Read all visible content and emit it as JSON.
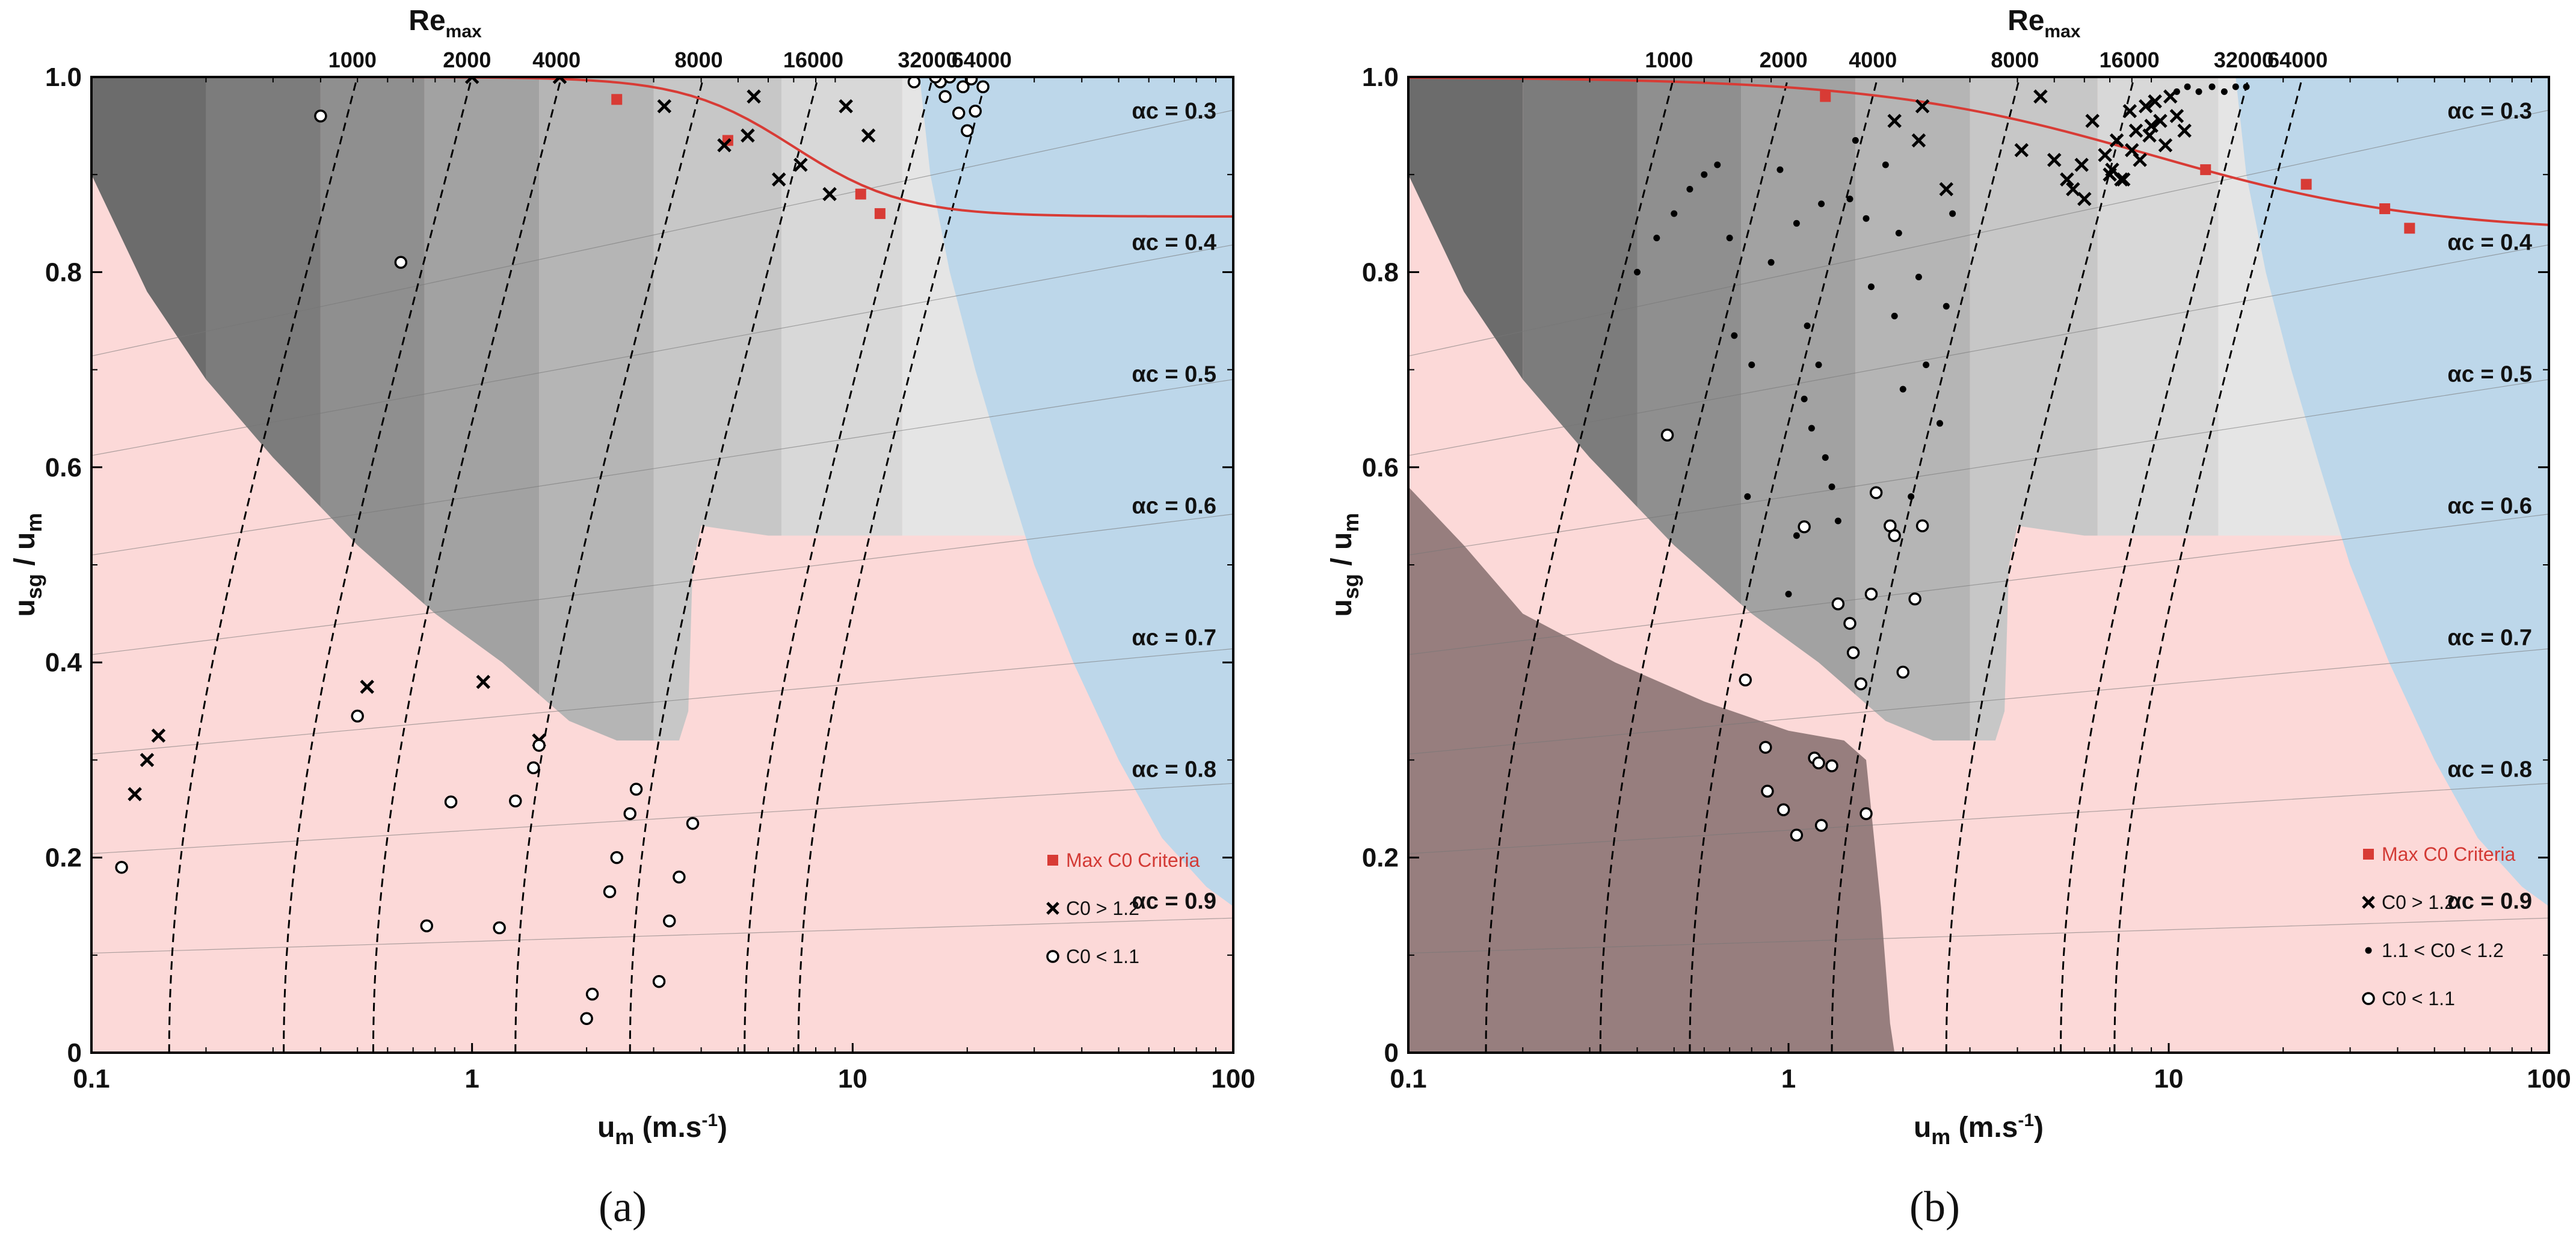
{
  "colors": {
    "grey_dark": "#6a6a6a",
    "grey_light": "#e2e2e2",
    "pink_region": "#fcd9d8",
    "blue_region": "#bdd7ea",
    "overlap_region": "#8e7676",
    "red_curve": "#d83b35",
    "axis": "#000000"
  },
  "chart_data": [
    {
      "id": "a",
      "type": "scatter",
      "sublabel": "(a)",
      "xlabel": "u_m (m.s^-1)",
      "xlabel_main": "u",
      "xlabel_sub": "m",
      "xlabel_unit_pre": " (m.s",
      "xlabel_unit_sup": "-1",
      "xlabel_unit_post": ")",
      "ylabel": "u_sg / u_m",
      "ylabel_main1": "u",
      "ylabel_sub1": "sg",
      "ylabel_mid": " / u",
      "ylabel_sub2": "m",
      "top_axis_label": "Re_max",
      "top_axis_main": "Re",
      "top_axis_sub": "max",
      "x_scale": "log",
      "xlim": [
        0.1,
        100
      ],
      "ylim": [
        0,
        1
      ],
      "x_ticks": [
        0.1,
        1,
        10,
        100
      ],
      "x_tick_labels": [
        "0.1",
        "1",
        "10",
        "100"
      ],
      "y_ticks": [
        0,
        0.2,
        0.4,
        0.6,
        0.8,
        1.0
      ],
      "y_tick_labels": [
        "0",
        "0.2",
        "0.4",
        "0.6",
        "0.8",
        "1.0"
      ],
      "re_levels": [
        1000,
        2000,
        4000,
        8000,
        16000,
        32000,
        64000
      ],
      "re_labels": [
        "1000",
        "2000",
        "4000",
        "8000",
        "16000",
        "32000",
        "64000"
      ],
      "alpha_levels": [
        0.9,
        0.8,
        0.7,
        0.6,
        0.5,
        0.4,
        0.3
      ],
      "alpha_labels": [
        "αc = 0.9",
        "αc = 0.8",
        "αc = 0.7",
        "αc = 0.6",
        "αc = 0.5",
        "αc = 0.4",
        "αc = 0.3"
      ],
      "max_c0_criteria": {
        "name": "Max C0 Criteria",
        "x": [
          2.4,
          4.7,
          10.5,
          11.8
        ],
        "y": [
          0.977,
          0.935,
          0.88,
          0.86
        ]
      },
      "series": [
        {
          "name": "C0 > 1.2",
          "marker": "x",
          "x": [
            0.13,
            0.14,
            0.15,
            0.53,
            1.0,
            1.07,
            1.5,
            1.7,
            3.2,
            4.6,
            5.3,
            5.5,
            6.4,
            7.3,
            8.7,
            9.6,
            11.0
          ],
          "y": [
            0.265,
            0.3,
            0.325,
            0.375,
            1.0,
            0.38,
            0.32,
            1.0,
            0.97,
            0.93,
            0.94,
            0.98,
            0.895,
            0.91,
            0.88,
            0.97,
            0.94
          ]
        },
        {
          "name": "C0 < 1.1",
          "marker": "o",
          "x": [
            0.12,
            0.4,
            0.65,
            0.5,
            0.88,
            0.76,
            1.18,
            1.3,
            1.45,
            1.5,
            2.0,
            2.07,
            2.3,
            2.4,
            2.6,
            2.7,
            3.1,
            3.3,
            3.5,
            3.8,
            17.0,
            17.5,
            18.0,
            19.0,
            19.5,
            20.0,
            20.5,
            21.0,
            22.0,
            14.5,
            16.5
          ],
          "y": [
            0.19,
            0.96,
            0.81,
            0.345,
            0.257,
            0.13,
            0.128,
            0.258,
            0.292,
            0.315,
            0.035,
            0.06,
            0.165,
            0.2,
            0.245,
            0.27,
            0.073,
            0.135,
            0.18,
            0.235,
            0.995,
            0.98,
            1.0,
            0.963,
            0.99,
            0.945,
            0.998,
            0.965,
            0.99,
            0.995,
            1.0
          ]
        }
      ],
      "legend": [
        {
          "marker": "square",
          "label": "Max C0 Criteria"
        },
        {
          "marker": "x",
          "label": "C0 > 1.2"
        },
        {
          "marker": "o",
          "label": "C0 < 1.1"
        }
      ]
    },
    {
      "id": "b",
      "type": "scatter",
      "sublabel": "(b)",
      "xlabel": "u_m (m.s^-1)",
      "xlabel_main": "u",
      "xlabel_sub": "m",
      "xlabel_unit_pre": " (m.s",
      "xlabel_unit_sup": "-1",
      "xlabel_unit_post": ")",
      "ylabel": "u_sg / u_m",
      "ylabel_main1": "u",
      "ylabel_sub1": "sg",
      "ylabel_mid": " / u",
      "ylabel_sub2": "m",
      "top_axis_label": "Re_max",
      "top_axis_main": "Re",
      "top_axis_sub": "max",
      "x_scale": "log",
      "xlim": [
        0.1,
        100
      ],
      "ylim": [
        0,
        1
      ],
      "x_ticks": [
        0.1,
        1,
        10,
        100
      ],
      "x_tick_labels": [
        "0.1",
        "1",
        "10",
        "100"
      ],
      "y_ticks": [
        0,
        0.2,
        0.6,
        0.8,
        1.0
      ],
      "y_tick_labels": [
        "0",
        "0.2",
        "0.6",
        "0.8",
        "1.0"
      ],
      "re_levels": [
        1000,
        2000,
        4000,
        8000,
        16000,
        32000,
        64000
      ],
      "re_labels": [
        "1000",
        "2000",
        "4000",
        "8000",
        "16000",
        "32000",
        "64000"
      ],
      "alpha_levels": [
        0.9,
        0.8,
        0.7,
        0.6,
        0.5,
        0.4,
        0.3
      ],
      "alpha_labels": [
        "αc = 0.9",
        "αc = 0.8",
        "αc = 0.7",
        "αc = 0.6",
        "αc = 0.5",
        "αc = 0.4",
        "αc = 0.3"
      ],
      "max_c0_criteria": {
        "name": "Max C0 Criteria",
        "x": [
          1.25,
          12.5,
          23.0,
          37.0,
          43.0
        ],
        "y": [
          0.98,
          0.905,
          0.89,
          0.865,
          0.845
        ]
      },
      "series": [
        {
          "name": "C0 > 1.2",
          "marker": "x",
          "x": [
            1.9,
            2.25,
            2.6,
            2.2,
            4.6,
            4.1,
            5.0,
            5.6,
            5.9,
            6.3,
            6.8,
            7.1,
            7.3,
            7.6,
            7.9,
            8.2,
            8.4,
            8.7,
            8.9,
            9.2,
            9.5,
            9.8,
            10.1,
            10.5,
            11.0,
            5.4,
            6.0,
            7.0,
            7.5,
            8.0,
            9.0
          ],
          "y": [
            0.955,
            0.97,
            0.885,
            0.935,
            0.98,
            0.925,
            0.915,
            0.885,
            0.91,
            0.955,
            0.92,
            0.905,
            0.935,
            0.895,
            0.965,
            0.945,
            0.915,
            0.97,
            0.94,
            0.975,
            0.955,
            0.93,
            0.98,
            0.96,
            0.945,
            0.895,
            0.875,
            0.9,
            0.895,
            0.925,
            0.95
          ]
        },
        {
          "name": "1.1 < C0 < 1.2",
          "marker": "dot",
          "x": [
            0.4,
            0.45,
            0.5,
            0.55,
            0.6,
            0.65,
            0.7,
            0.72,
            0.78,
            0.8,
            0.9,
            1.0,
            1.05,
            1.1,
            1.15,
            1.2,
            1.25,
            1.3,
            1.35,
            1.5,
            1.6,
            1.8,
            1.9,
            2.0,
            2.1,
            2.3,
            2.5,
            2.6,
            2.7,
            1.45,
            1.65,
            1.95,
            2.2,
            1.05,
            0.95,
            1.12,
            1.22,
            12.0,
            13.0,
            14.0,
            15.0,
            16.0,
            10.5,
            11.2
          ],
          "y": [
            0.8,
            0.835,
            0.86,
            0.885,
            0.9,
            0.91,
            0.835,
            0.735,
            0.57,
            0.705,
            0.81,
            0.47,
            0.53,
            0.67,
            0.64,
            0.705,
            0.61,
            0.58,
            0.545,
            0.935,
            0.855,
            0.91,
            0.755,
            0.68,
            0.57,
            0.705,
            0.645,
            0.765,
            0.86,
            0.875,
            0.785,
            0.84,
            0.795,
            0.85,
            0.905,
            0.745,
            0.87,
            0.985,
            0.99,
            0.985,
            0.99,
            0.99,
            0.985,
            0.99
          ]
        },
        {
          "name": "C0 < 1.1",
          "marker": "o",
          "x": [
            0.48,
            0.77,
            0.87,
            0.88,
            0.97,
            1.05,
            1.17,
            1.1,
            1.2,
            1.22,
            1.3,
            1.35,
            1.45,
            1.48,
            1.55,
            1.6,
            1.65,
            1.7,
            1.85,
            1.9,
            2.0,
            2.15,
            2.25
          ],
          "y": [
            0.633,
            0.382,
            0.313,
            0.268,
            0.249,
            0.223,
            0.302,
            0.539,
            0.297,
            0.233,
            0.294,
            0.46,
            0.44,
            0.41,
            0.378,
            0.245,
            0.47,
            0.574,
            0.54,
            0.53,
            0.39,
            0.465,
            0.54
          ]
        }
      ],
      "legend": [
        {
          "marker": "square",
          "label": "Max C0 Criteria"
        },
        {
          "marker": "x",
          "label": "C0 > 1.2"
        },
        {
          "marker": "dot",
          "label": "1.1 < C0 < 1.2"
        },
        {
          "marker": "o",
          "label": "C0 < 1.1"
        }
      ]
    }
  ]
}
